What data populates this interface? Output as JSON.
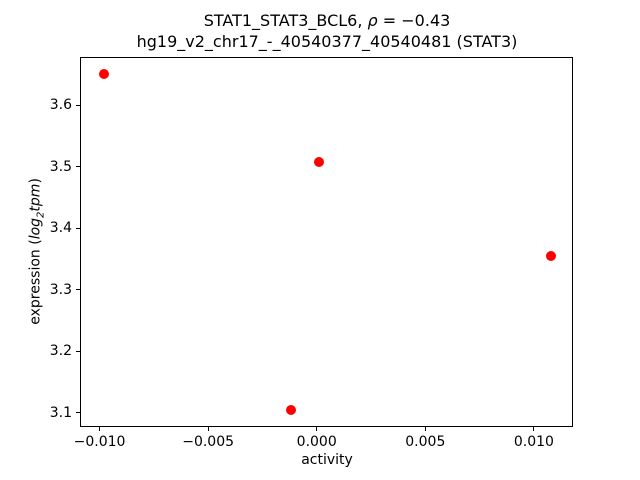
{
  "title": {
    "line1_pre": "STAT1_STAT3_BCL6, ",
    "line1_rho": "ρ",
    "line1_post": " = −0.43",
    "line2": "hg19_v2_chr17_-_40540377_40540481 (STAT3)"
  },
  "axis_labels": {
    "xlabel": "activity",
    "ylabel_pre": "expression (",
    "ylabel_math_log": "log",
    "ylabel_math_sub": "2",
    "ylabel_math_tail": "tpm",
    "ylabel_post": ")"
  },
  "chart_data": {
    "type": "scatter",
    "title": "STAT1_STAT3_BCL6, ρ = −0.43",
    "subtitle": "hg19_v2_chr17_-_40540377_40540481 (STAT3)",
    "xlabel": "activity",
    "ylabel": "expression (log2tpm)",
    "points": [
      {
        "x": -0.0098,
        "y": 3.65
      },
      {
        "x": 0.0001,
        "y": 3.507
      },
      {
        "x": -0.0012,
        "y": 3.105
      },
      {
        "x": 0.0108,
        "y": 3.355
      }
    ],
    "marker_color": "#ff0000",
    "marker_diameter_px": 10,
    "xlim": [
      -0.0109,
      0.0118
    ],
    "ylim": [
      3.077,
      3.678
    ],
    "x_ticks": [
      -0.01,
      -0.005,
      0.0,
      0.005,
      0.01
    ],
    "x_tick_labels": [
      "−0.010",
      "−0.005",
      "0.000",
      "0.005",
      "0.010"
    ],
    "y_ticks": [
      3.1,
      3.2,
      3.3,
      3.4,
      3.5,
      3.6
    ],
    "y_tick_labels": [
      "3.1",
      "3.2",
      "3.3",
      "3.4",
      "3.5",
      "3.6"
    ],
    "grid": false,
    "legend": null,
    "spine_color": "#000000",
    "background_color": "#ffffff"
  }
}
